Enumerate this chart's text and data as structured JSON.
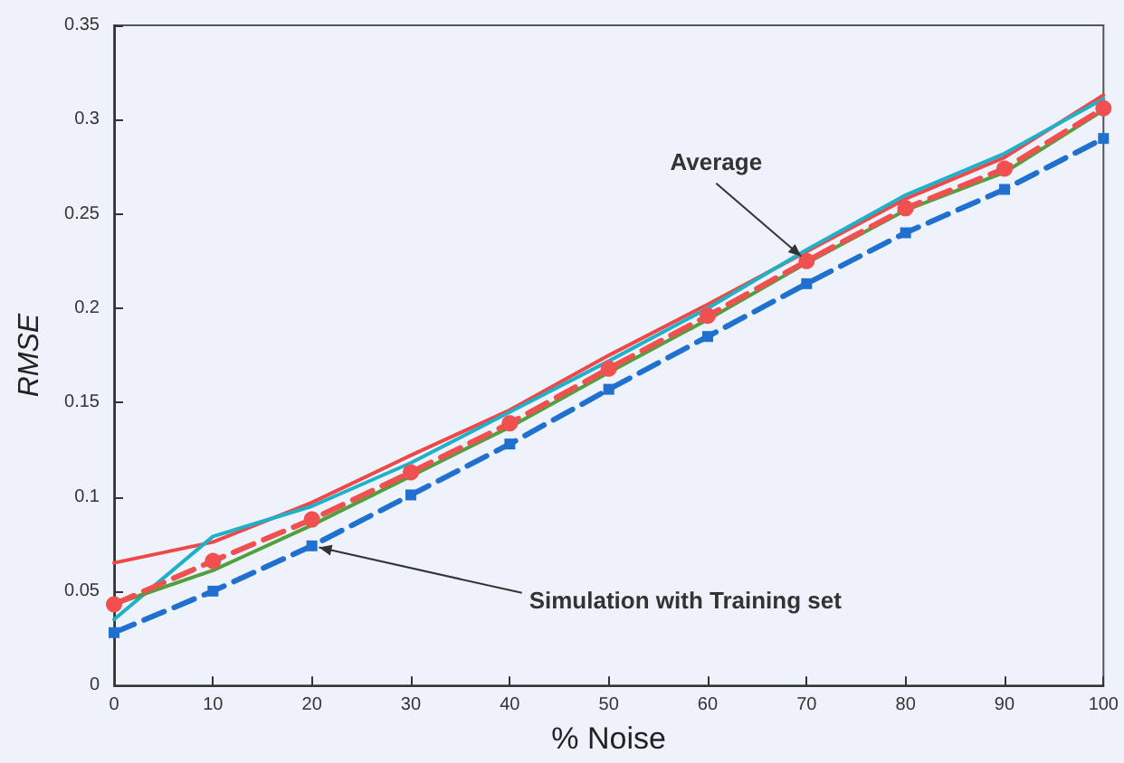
{
  "chart_data": {
    "type": "line",
    "xlabel": "% Noise",
    "ylabel": "RMSE",
    "x": [
      0,
      10,
      20,
      30,
      40,
      50,
      60,
      70,
      80,
      90,
      100
    ],
    "xlim": [
      0,
      100
    ],
    "xticks": [
      0,
      10,
      20,
      30,
      40,
      50,
      60,
      70,
      80,
      90,
      100
    ],
    "ylim": [
      0,
      0.35
    ],
    "yticks": [
      0,
      0.05,
      0.1,
      0.15,
      0.2,
      0.25,
      0.3,
      0.35
    ],
    "grid": false,
    "series": [
      {
        "color": "#f04848",
        "line_style": "solid",
        "marker": "none",
        "values": [
          0.065,
          0.076,
          0.097,
          0.122,
          0.146,
          0.175,
          0.202,
          0.23,
          0.258,
          0.28,
          0.313
        ]
      },
      {
        "color": "#20b0c8",
        "line_style": "solid",
        "marker": "none",
        "values": [
          0.035,
          0.079,
          0.095,
          0.118,
          0.145,
          0.172,
          0.2,
          0.231,
          0.26,
          0.282,
          0.311
        ]
      },
      {
        "color": "#50a040",
        "line_style": "solid",
        "marker": "none",
        "values": [
          0.043,
          0.061,
          0.085,
          0.111,
          0.137,
          0.166,
          0.194,
          0.224,
          0.252,
          0.272,
          0.305
        ]
      },
      {
        "color": "#2070d0",
        "line_style": "dashed",
        "marker": "square",
        "values": [
          0.028,
          0.05,
          0.074,
          0.101,
          0.128,
          0.157,
          0.185,
          0.213,
          0.24,
          0.263,
          0.29
        ]
      },
      {
        "color": "#f05050",
        "line_style": "dashed",
        "marker": "circle",
        "values": [
          0.043,
          0.066,
          0.088,
          0.113,
          0.139,
          0.168,
          0.196,
          0.225,
          0.253,
          0.274,
          0.306
        ]
      }
    ],
    "annotations": [
      {
        "text": "Average",
        "x": 70,
        "y": 0.225
      },
      {
        "text": "Simulation with Training set",
        "x": 20,
        "y": 0.074
      }
    ]
  }
}
